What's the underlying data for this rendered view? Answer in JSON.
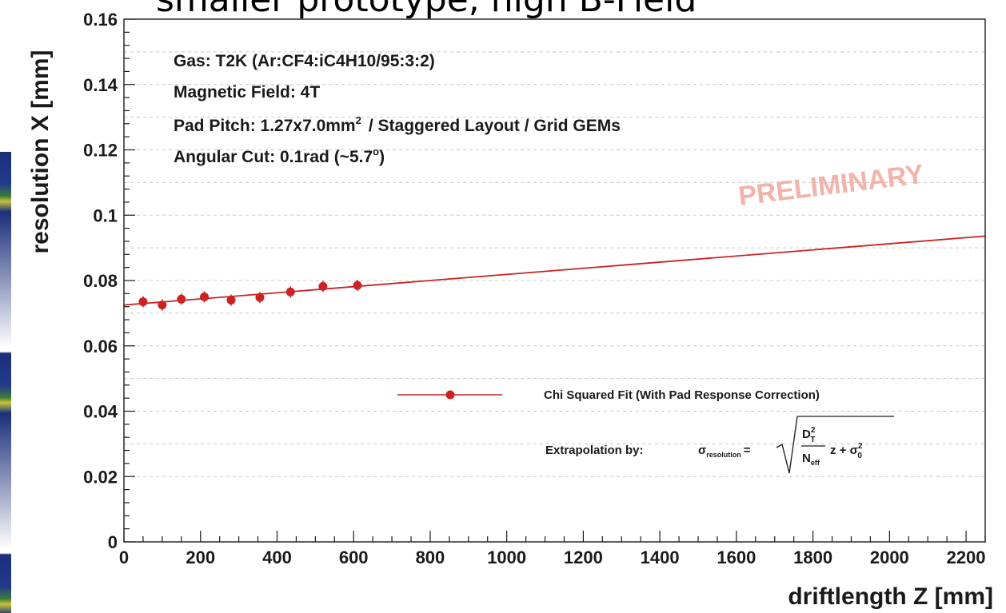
{
  "headline": "smaller prototype, high B-Field",
  "chart_data": {
    "type": "scatter",
    "xlabel": "driftlength Z [mm]",
    "ylabel": "resolution X [mm]",
    "xlim": [
      0,
      2250
    ],
    "ylim": [
      0,
      0.16
    ],
    "x_ticks": [
      0,
      200,
      400,
      600,
      800,
      1000,
      1200,
      1400,
      1600,
      1800,
      2000,
      2200
    ],
    "y_ticks": [
      0,
      0.02,
      0.04,
      0.06,
      0.08,
      0.1,
      0.12,
      0.14,
      0.16
    ],
    "y_tick_labels": [
      "0",
      "0.02",
      "0.04",
      "0.06",
      "0.08",
      "0.1",
      "0.12",
      "0.14",
      "0.16"
    ],
    "grid": "horizontal dashed",
    "series": [
      {
        "name": "Chi Squared Fit (With Pad Response Correction)",
        "color": "#cc2222",
        "x": [
          50,
          100,
          150,
          210,
          280,
          355,
          435,
          520,
          610
        ],
        "y": [
          0.0735,
          0.0725,
          0.0743,
          0.075,
          0.074,
          0.0748,
          0.0765,
          0.0782,
          0.0785
        ]
      }
    ],
    "fit_line": {
      "x": [
        0,
        2250
      ],
      "y": [
        0.0725,
        0.0936
      ],
      "color": "#cc2222"
    },
    "annotations": {
      "info_lines": [
        "Gas: T2K (Ar:CF4:iC4H10/95:3:2)",
        "Magnetic Field: 4T",
        "Pad Pitch: 1.27x7.0mm",
        "/  Staggered Layout  /  Grid GEMs",
        "Angular Cut: 0.1rad (~5.7",
        ")"
      ],
      "superscripts": [
        "2",
        "o"
      ],
      "watermark": "PRELIMINARY",
      "legend_entry": "Chi Squared Fit (With Pad Response Correction)",
      "extrapolation_label": "Extrapolation by:",
      "formula": {
        "sigma": "σ",
        "sigma_sub": "resolution",
        "equals": "=",
        "numerator": "D",
        "numerator_sup": "2",
        "numerator_sub": "T",
        "denominator": "N",
        "denominator_sub": "eff",
        "tail": "z + σ",
        "tail_sup": "2",
        "tail_sub": "0"
      }
    }
  }
}
